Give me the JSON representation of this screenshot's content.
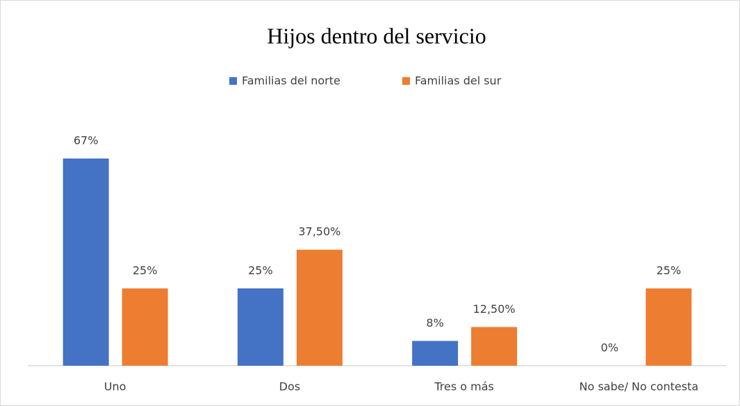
{
  "chart_data": {
    "type": "bar",
    "title": "Hijos dentro del servicio",
    "categories": [
      "Uno",
      "Dos",
      "Tres o más",
      "No sabe/ No contesta"
    ],
    "series": [
      {
        "name": "Familias del norte",
        "color": "#4472c4",
        "values": [
          67,
          25,
          8,
          0
        ],
        "value_labels": [
          "67%",
          "25%",
          "8%",
          "0%"
        ]
      },
      {
        "name": "Familias del sur",
        "color": "#ed7d31",
        "values": [
          25,
          37.5,
          12.5,
          25
        ],
        "value_labels": [
          "25%",
          "37,50%",
          "12,50%",
          "25%"
        ]
      }
    ],
    "legend": "top"
  }
}
